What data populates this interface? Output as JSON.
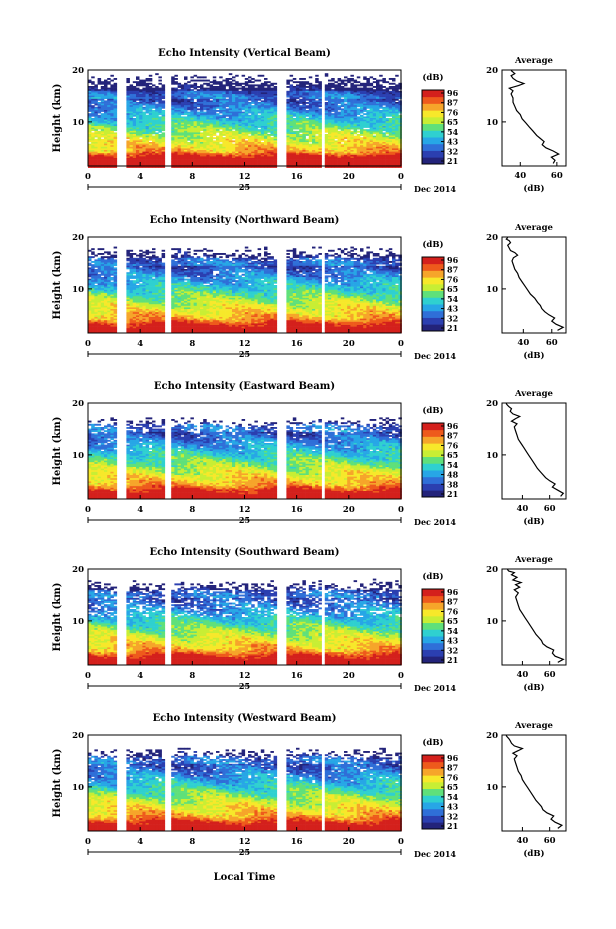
{
  "figure": {
    "xlabel": "Local Time",
    "day_label": "25",
    "date_label": "Dec 2014",
    "x_ticks": [
      "0",
      "4",
      "8",
      "12",
      "16",
      "20",
      "0"
    ],
    "y_ticks": [
      "20",
      "10"
    ],
    "ylabel": "Height (km)",
    "colorbar_unit": "(dB)",
    "profile_title": "Average",
    "profile_xlabel": "(dB)"
  },
  "colormap": [
    "#23237a",
    "#2b3fb0",
    "#2f6fd8",
    "#27a6e6",
    "#2fd0d0",
    "#5fe07a",
    "#c8ee34",
    "#f7e82a",
    "#f6a52a",
    "#ee5a1c",
    "#d4201c"
  ],
  "chart_data": [
    {
      "type": "heatmap",
      "title": "Echo Intensity (Vertical Beam)",
      "colorbar_ticks": [
        "96",
        "87",
        "76",
        "65",
        "54",
        "43",
        "32",
        "21"
      ],
      "profile": {
        "x_ticks": [
          "40",
          "60"
        ],
        "xlim": [
          30,
          65
        ],
        "ylim": [
          1.5,
          20
        ],
        "x": [
          58,
          59,
          57,
          61,
          58,
          54,
          52,
          53,
          51,
          49,
          47,
          45,
          43,
          41,
          40,
          38,
          37,
          36,
          36,
          35,
          36,
          34,
          39,
          42,
          38,
          36,
          35,
          37,
          36,
          35
        ],
        "y": [
          2,
          2.6,
          3.2,
          3.8,
          4.4,
          5,
          5.6,
          6.2,
          6.8,
          7.4,
          8.2,
          9,
          9.8,
          10.6,
          11.4,
          12.2,
          13,
          13.8,
          14.6,
          15.4,
          16,
          16.5,
          17,
          17.4,
          17.9,
          18.4,
          18.9,
          19.3,
          19.6,
          19.9
        ]
      }
    },
    {
      "type": "heatmap",
      "title": "Echo Intensity (Northward Beam)",
      "colorbar_ticks": [
        "96",
        "87",
        "76",
        "65",
        "54",
        "43",
        "32",
        "21"
      ],
      "profile": {
        "x_ticks": [
          "40",
          "60"
        ],
        "xlim": [
          25,
          70
        ],
        "ylim": [
          1.5,
          20
        ],
        "x": [
          64,
          68,
          63,
          60,
          62,
          58,
          55,
          53,
          52,
          50,
          48,
          45,
          43,
          41,
          39,
          37,
          36,
          34,
          33,
          32,
          33,
          36,
          34,
          31,
          30,
          29,
          31,
          30,
          28,
          29
        ],
        "y": [
          2,
          2.6,
          3.2,
          3.8,
          4.4,
          5,
          5.6,
          6.2,
          6.8,
          7.4,
          8.2,
          9,
          9.8,
          10.6,
          11.4,
          12.2,
          13,
          13.8,
          14.6,
          15.4,
          16,
          16.5,
          17,
          17.4,
          17.9,
          18.4,
          18.9,
          19.3,
          19.6,
          19.9
        ]
      }
    },
    {
      "type": "heatmap",
      "title": "Echo Intensity (Eastward Beam)",
      "colorbar_ticks": [
        "96",
        "87",
        "76",
        "65",
        "54",
        "48",
        "38",
        "21"
      ],
      "profile": {
        "x_ticks": [
          "40",
          "60"
        ],
        "xlim": [
          25,
          72
        ],
        "ylim": [
          1.5,
          20
        ],
        "x": [
          68,
          70,
          66,
          62,
          64,
          60,
          57,
          55,
          53,
          51,
          49,
          47,
          45,
          43,
          41,
          39,
          37,
          36,
          35,
          34,
          36,
          32,
          35,
          38,
          33,
          31,
          32,
          30,
          29,
          28
        ],
        "y": [
          2,
          2.6,
          3.2,
          3.8,
          4.4,
          5,
          5.6,
          6.2,
          6.8,
          7.4,
          8.2,
          9,
          9.8,
          10.6,
          11.4,
          12.2,
          13,
          13.8,
          14.6,
          15.4,
          16,
          16.5,
          17,
          17.4,
          17.9,
          18.4,
          18.9,
          19.3,
          19.6,
          19.9
        ]
      }
    },
    {
      "type": "heatmap",
      "title": "Echo Intensity (Southward Beam)",
      "colorbar_ticks": [
        "96",
        "87",
        "76",
        "65",
        "54",
        "43",
        "32",
        "21"
      ],
      "profile": {
        "x_ticks": [
          "40",
          "60"
        ],
        "xlim": [
          25,
          72
        ],
        "ylim": [
          1.5,
          20
        ],
        "x": [
          66,
          70,
          64,
          62,
          63,
          58,
          55,
          54,
          52,
          50,
          48,
          46,
          44,
          42,
          40,
          38,
          37,
          36,
          35,
          37,
          34,
          38,
          35,
          39,
          33,
          36,
          32,
          34,
          30,
          29
        ],
        "y": [
          2,
          2.6,
          3.2,
          3.8,
          4.4,
          5,
          5.6,
          6.2,
          6.8,
          7.4,
          8.2,
          9,
          9.8,
          10.6,
          11.4,
          12.2,
          13,
          13.8,
          14.6,
          15.4,
          16,
          16.5,
          17,
          17.4,
          17.9,
          18.4,
          18.9,
          19.3,
          19.6,
          19.9
        ]
      }
    },
    {
      "type": "heatmap",
      "title": "Echo Intensity (Westward Beam)",
      "colorbar_ticks": [
        "96",
        "87",
        "76",
        "65",
        "54",
        "43",
        "32",
        "21"
      ],
      "profile": {
        "x_ticks": [
          "40",
          "60"
        ],
        "xlim": [
          25,
          72
        ],
        "ylim": [
          1.5,
          20
        ],
        "x": [
          66,
          69,
          64,
          61,
          63,
          58,
          55,
          54,
          52,
          50,
          48,
          46,
          44,
          42,
          40,
          39,
          37,
          36,
          35,
          34,
          36,
          33,
          37,
          40,
          34,
          32,
          31,
          30,
          29,
          28
        ],
        "y": [
          2,
          2.6,
          3.2,
          3.8,
          4.4,
          5,
          5.6,
          6.2,
          6.8,
          7.4,
          8.2,
          9,
          9.8,
          10.6,
          11.4,
          12.2,
          13,
          13.8,
          14.6,
          15.4,
          16,
          16.5,
          17,
          17.4,
          17.9,
          18.4,
          18.9,
          19.3,
          19.6,
          19.9
        ]
      }
    }
  ]
}
